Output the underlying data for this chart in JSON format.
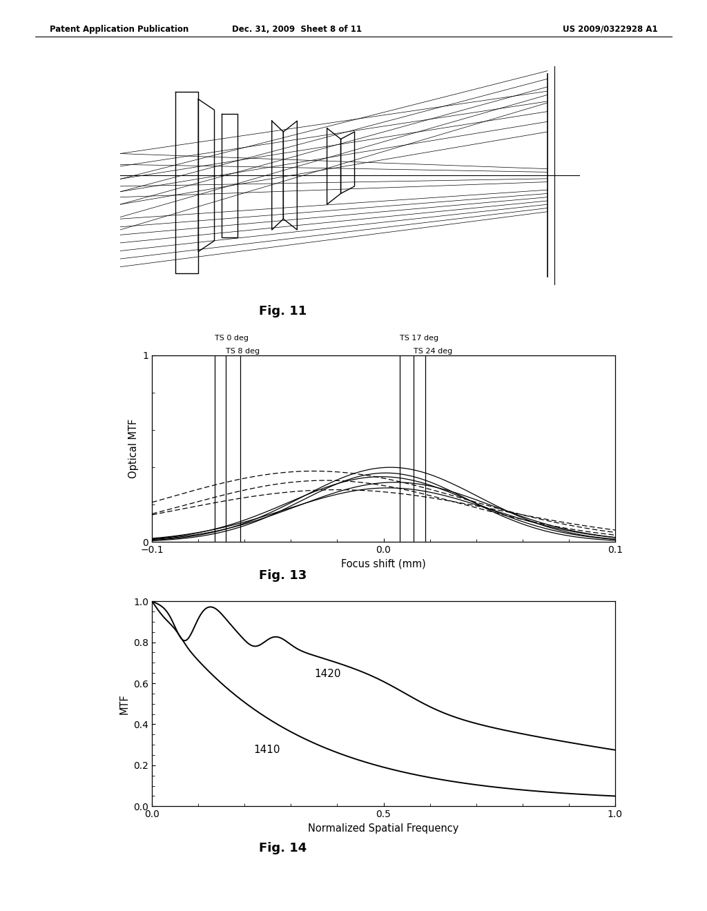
{
  "header_left": "Patent Application Publication",
  "header_center": "Dec. 31, 2009  Sheet 8 of 11",
  "header_right": "US 2009/0322928 A1",
  "fig11_caption": "Fig. 11",
  "fig13_caption": "Fig. 13",
  "fig14_caption": "Fig. 14",
  "fig13_xlabel": "Focus shift (mm)",
  "fig13_ylabel": "Optical MTF",
  "fig13_xlim": [
    -0.1,
    0.1
  ],
  "fig13_ylim": [
    0,
    1
  ],
  "fig13_xticks": [
    -0.1,
    0,
    0.1
  ],
  "fig13_yticks": [
    0,
    1
  ],
  "fig13_vlines_group1": [
    -0.073,
    -0.068,
    -0.062
  ],
  "fig13_vlines_group2": [
    0.007,
    0.013,
    0.018
  ],
  "fig13_label_ts0": "TS 0 deg",
  "fig13_label_ts8": "TS 8 deg",
  "fig13_label_ts17": "TS 17 deg",
  "fig13_label_ts24": "TS 24 deg",
  "fig14_xlabel": "Normalized Spatial Frequency",
  "fig14_ylabel": "MTF",
  "fig14_xlim": [
    0,
    1
  ],
  "fig14_ylim": [
    0,
    1
  ],
  "fig14_xticks": [
    0,
    0.5,
    1
  ],
  "fig14_yticks": [
    0,
    0.2,
    0.4,
    0.6,
    0.8,
    1
  ],
  "fig14_label_1420": "1420",
  "fig14_label_1410": "1410",
  "background_color": "#ffffff",
  "line_color": "#000000"
}
